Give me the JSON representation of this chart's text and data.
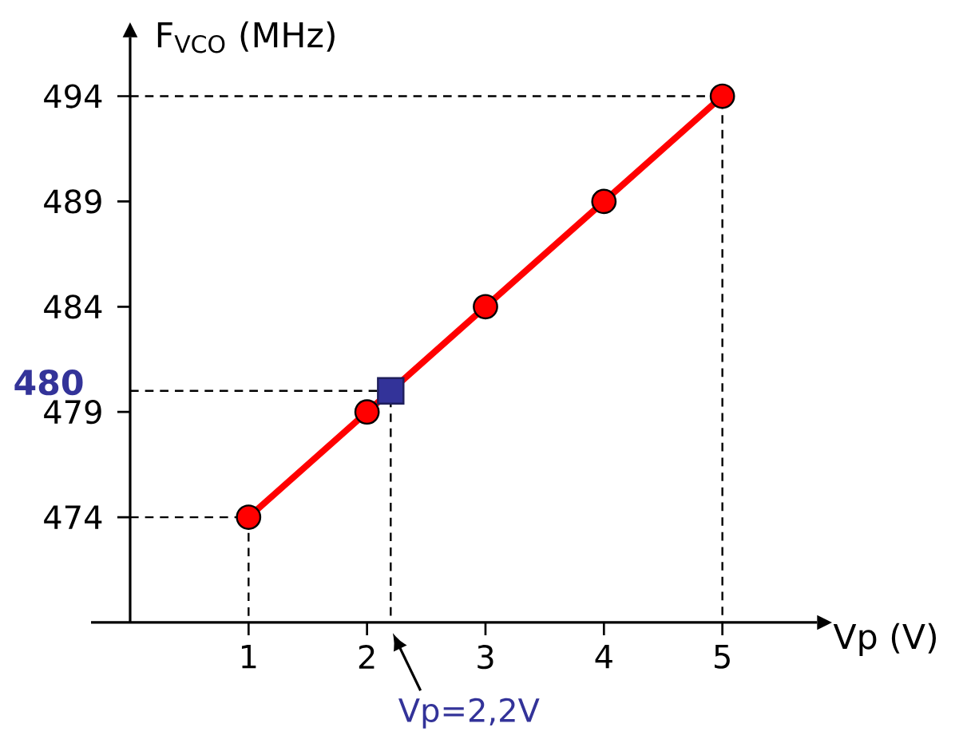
{
  "chart_data": {
    "type": "line",
    "xlabel": "Vp (V)",
    "ylabel": "F$_{VCO}$ (MHz)",
    "xlim": [
      -0.33,
      5.8
    ],
    "ylim": [
      469,
      496.8
    ],
    "xticks": [
      1,
      2,
      3,
      4,
      5
    ],
    "yticks": [
      474,
      479,
      484,
      489,
      494
    ],
    "grid": false,
    "series": [
      {
        "line_style": "dashed",
        "marker": "none",
        "color": "#000000",
        "x": [
          0,
          1,
          1
        ],
        "values": [
          474,
          474,
          469
        ]
      },
      {
        "line_style": "dashed",
        "marker": "none",
        "color": "#000000",
        "x": [
          0,
          5,
          5
        ],
        "values": [
          494,
          494,
          469
        ]
      },
      {
        "line_style": "dashed",
        "marker": "none",
        "color": "#000000",
        "x": [
          0,
          2.2,
          2.2
        ],
        "values": [
          480,
          480,
          469
        ]
      },
      {
        "line_style": "solid",
        "marker": "circle",
        "color": "#ff0000",
        "x": [
          1,
          2,
          3,
          4,
          5
        ],
        "values": [
          474,
          479,
          484,
          489,
          494
        ]
      },
      {
        "type": "scatter",
        "marker": "square",
        "color": "#333399",
        "x": [
          2.2
        ],
        "values": [
          480
        ]
      }
    ],
    "annotations": [
      {
        "text": "480",
        "x": 0,
        "y": 480
      },
      {
        "text": "Vp=2,2V",
        "x": 2.2,
        "y": 469
      }
    ]
  }
}
